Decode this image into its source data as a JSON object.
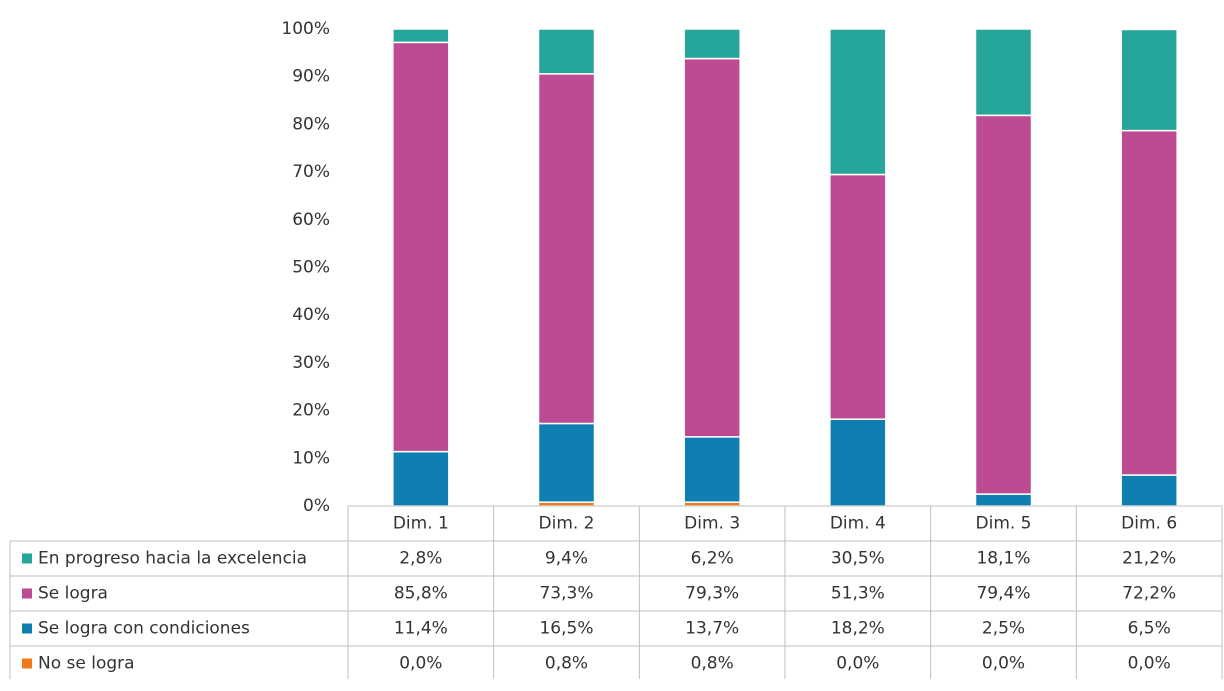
{
  "chart_data": {
    "type": "stacked_bar",
    "categories": [
      "Dim. 1",
      "Dim. 2",
      "Dim. 3",
      "Dim. 4",
      "Dim. 5",
      "Dim. 6"
    ],
    "series": [
      {
        "name": "En progreso hacia la excelencia",
        "color": "#26a69a",
        "values": [
          2.8,
          9.4,
          6.2,
          30.5,
          18.1,
          21.2
        ],
        "value_labels": [
          "2,8%",
          "9,4%",
          "6,2%",
          "30,5%",
          "18,1%",
          "21,2%"
        ]
      },
      {
        "name": "Se logra",
        "color": "#bc4b93",
        "values": [
          85.8,
          73.3,
          79.3,
          51.3,
          79.4,
          72.2
        ],
        "value_labels": [
          "85,8%",
          "73,3%",
          "79,3%",
          "51,3%",
          "79,4%",
          "72,2%"
        ]
      },
      {
        "name": "Se logra con condiciones",
        "color": "#0e7fb0",
        "values": [
          11.4,
          16.5,
          13.7,
          18.2,
          2.5,
          6.5
        ],
        "value_labels": [
          "11,4%",
          "16,5%",
          "13,7%",
          "18,2%",
          "2,5%",
          "6,5%"
        ]
      },
      {
        "name": "No se logra",
        "color": "#f07818",
        "values": [
          0.0,
          0.8,
          0.8,
          0.0,
          0.0,
          0.0
        ],
        "value_labels": [
          "0,0%",
          "0,8%",
          "0,8%",
          "0,0%",
          "0,0%",
          "0,0%"
        ]
      }
    ],
    "ylim": [
      0,
      100
    ],
    "yticks": [
      {
        "value": 0,
        "label": "0%"
      },
      {
        "value": 10,
        "label": "10%"
      },
      {
        "value": 20,
        "label": "20%"
      },
      {
        "value": 30,
        "label": "30%"
      },
      {
        "value": 40,
        "label": "40%"
      },
      {
        "value": 50,
        "label": "50%"
      },
      {
        "value": 60,
        "label": "60%"
      },
      {
        "value": 70,
        "label": "70%"
      },
      {
        "value": 80,
        "label": "80%"
      },
      {
        "value": 90,
        "label": "90%"
      },
      {
        "value": 100,
        "label": "100%"
      }
    ],
    "grid": false
  }
}
